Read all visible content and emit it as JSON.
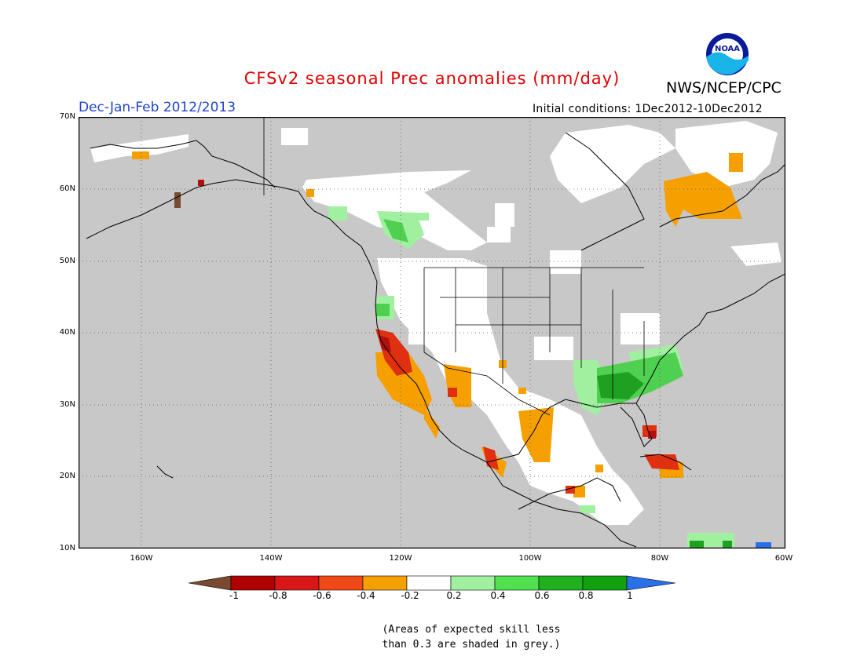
{
  "header": {
    "title": "CFSv2 seasonal Prec anomalies (mm/day)",
    "org": "NWS/NCEP/CPC",
    "logo_text": "NOAA",
    "season": "Dec-Jan-Feb 2012/2013",
    "initial_conditions": "Initial conditions: 1Dec2012-10Dec2012"
  },
  "map": {
    "lat_labels": [
      "70N",
      "60N",
      "50N",
      "40N",
      "30N",
      "20N",
      "10N"
    ],
    "lon_labels": [
      "160W",
      "140W",
      "120W",
      "100W",
      "80W",
      "60W"
    ],
    "colors": {
      "skill_mask_grey": "#c8c8c8",
      "land_white": "#ffffff",
      "dry_strong": "#e03010",
      "dry_moderate": "#f5a000",
      "dry_extreme": "#b01010",
      "wet_light": "#a0f0a0",
      "wet_moderate": "#50d050",
      "wet_strong": "#20a020",
      "brown": "#7a4a30"
    }
  },
  "colorbar": {
    "labels": [
      "-1",
      "-0.8",
      "-0.6",
      "-0.4",
      "-0.2",
      "0.2",
      "0.4",
      "0.6",
      "0.8",
      "1"
    ],
    "colors": [
      "#7a4a30",
      "#b00000",
      "#d81818",
      "#f04818",
      "#f5a000",
      "#ffffff",
      "#a0f0a0",
      "#50e050",
      "#20b020",
      "#10a010",
      "#2a70e8"
    ]
  },
  "note": {
    "line1": "(Areas of expected skill less",
    "line2": "than 0.3 are shaded in grey.)"
  }
}
